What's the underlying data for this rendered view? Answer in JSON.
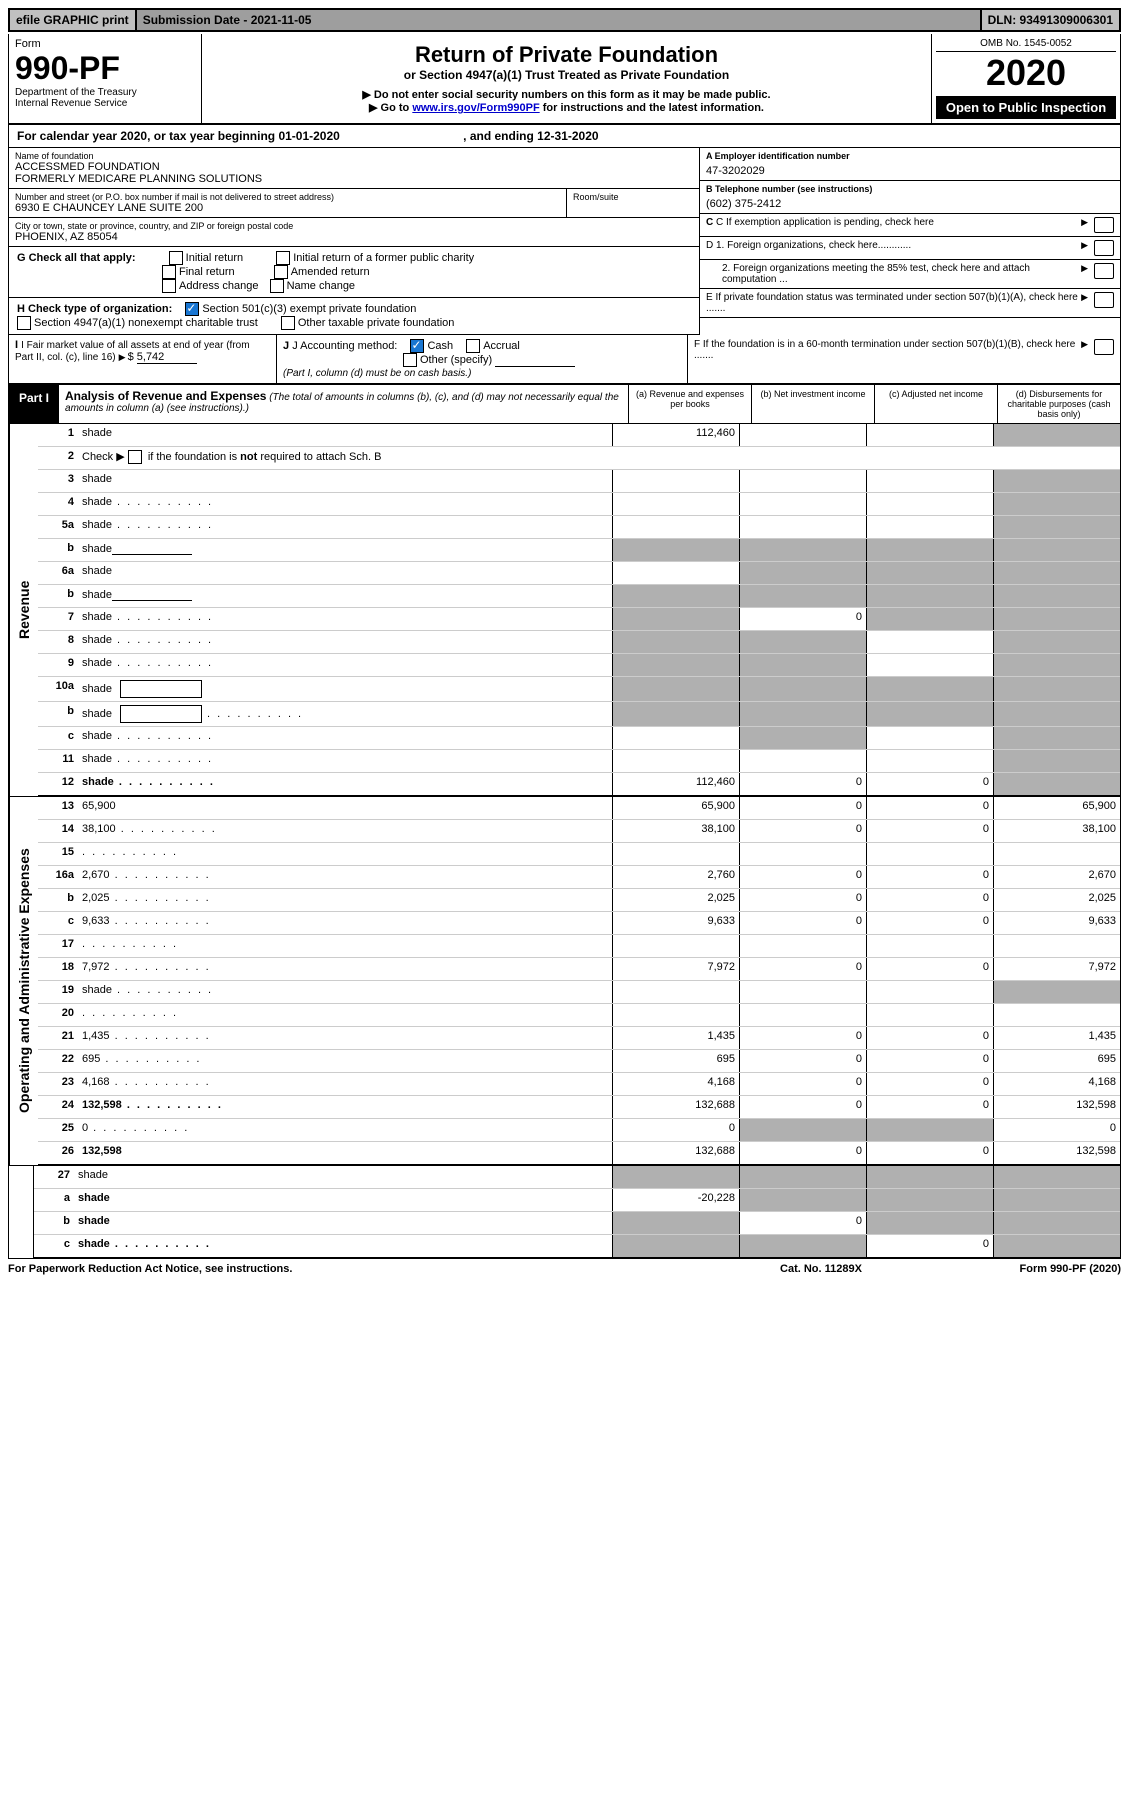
{
  "top": {
    "efile": "efile GRAPHIC print",
    "submission": "Submission Date - 2021-11-05",
    "dln": "DLN: 93491309006301"
  },
  "header": {
    "form_label": "Form",
    "form_no": "990-PF",
    "dept": "Department of the Treasury",
    "irs": "Internal Revenue Service",
    "title": "Return of Private Foundation",
    "subtitle": "or Section 4947(a)(1) Trust Treated as Private Foundation",
    "instr1": "▶ Do not enter social security numbers on this form as it may be made public.",
    "instr2_pre": "▶ Go to ",
    "instr2_link": "www.irs.gov/Form990PF",
    "instr2_post": " for instructions and the latest information.",
    "omb": "OMB No. 1545-0052",
    "year": "2020",
    "open": "Open to Public Inspection"
  },
  "calyear": {
    "text": "For calendar year 2020, or tax year beginning 01-01-2020",
    "ending": ", and ending 12-31-2020"
  },
  "info": {
    "name_label": "Name of foundation",
    "name1": "ACCESSMED FOUNDATION",
    "name2": "FORMERLY MEDICARE PLANNING SOLUTIONS",
    "addr_label": "Number and street (or P.O. box number if mail is not delivered to street address)",
    "addr": "6930 E CHAUNCEY LANE SUITE 200",
    "room_label": "Room/suite",
    "city_label": "City or town, state or province, country, and ZIP or foreign postal code",
    "city": "PHOENIX, AZ  85054",
    "a_label": "A Employer identification number",
    "a_val": "47-3202029",
    "b_label": "B Telephone number (see instructions)",
    "b_val": "(602) 375-2412",
    "c_label": "C If exemption application is pending, check here",
    "d1": "D 1. Foreign organizations, check here............",
    "d2": "2. Foreign organizations meeting the 85% test, check here and attach computation ...",
    "e_label": "E  If private foundation status was terminated under section 507(b)(1)(A), check here .......",
    "f_label": "F  If the foundation is in a 60-month termination under section 507(b)(1)(B), check here ......."
  },
  "g": {
    "label": "G Check all that apply:",
    "opts": [
      "Initial return",
      "Final return",
      "Address change",
      "Initial return of a former public charity",
      "Amended return",
      "Name change"
    ]
  },
  "h": {
    "label": "H Check type of organization:",
    "opt1": "Section 501(c)(3) exempt private foundation",
    "opt2": "Section 4947(a)(1) nonexempt charitable trust",
    "opt3": "Other taxable private foundation"
  },
  "i": {
    "label": "I Fair market value of all assets at end of year (from Part II, col. (c), line 16)",
    "val": "5,742"
  },
  "j": {
    "label": "J Accounting method:",
    "cash": "Cash",
    "accrual": "Accrual",
    "other": "Other (specify)",
    "note": "(Part I, column (d) must be on cash basis.)"
  },
  "part1": {
    "label": "Part I",
    "title": "Analysis of Revenue and Expenses",
    "note": "(The total of amounts in columns (b), (c), and (d) may not necessarily equal the amounts in column (a) (see instructions).)",
    "col_a": "(a)   Revenue and expenses per books",
    "col_b": "(b)   Net investment income",
    "col_c": "(c)   Adjusted net income",
    "col_d": "(d)   Disbursements for charitable purposes (cash basis only)"
  },
  "revenue_label": "Revenue",
  "expenses_label": "Operating and Administrative Expenses",
  "rows": [
    {
      "n": "1",
      "d": "shade",
      "a": "112,460",
      "b": "",
      "c": ""
    },
    {
      "n": "2",
      "d": "Check ▶ ☐ if the foundation is not required to attach Sch. B",
      "nocols": true
    },
    {
      "n": "3",
      "d": "shade",
      "a": "",
      "b": "",
      "c": ""
    },
    {
      "n": "4",
      "d": "shade",
      "a": "",
      "b": "",
      "c": "",
      "dots": true
    },
    {
      "n": "5a",
      "d": "shade",
      "a": "",
      "b": "",
      "c": "",
      "dots": true
    },
    {
      "n": "b",
      "d": "shade",
      "a": "shade",
      "b": "shade",
      "c": "shade",
      "inline": true
    },
    {
      "n": "6a",
      "d": "shade",
      "a": "",
      "b": "shade",
      "c": "shade"
    },
    {
      "n": "b",
      "d": "shade",
      "a": "shade",
      "b": "shade",
      "c": "shade",
      "inline": true
    },
    {
      "n": "7",
      "d": "shade",
      "a": "shade",
      "b": "0",
      "c": "shade",
      "dots": true
    },
    {
      "n": "8",
      "d": "shade",
      "a": "shade",
      "b": "shade",
      "c": "",
      "dots": true
    },
    {
      "n": "9",
      "d": "shade",
      "a": "shade",
      "b": "shade",
      "c": "",
      "dots": true
    },
    {
      "n": "10a",
      "d": "shade",
      "a": "shade",
      "b": "shade",
      "c": "shade",
      "box": true
    },
    {
      "n": "b",
      "d": "shade",
      "a": "shade",
      "b": "shade",
      "c": "shade",
      "box": true,
      "dots": true
    },
    {
      "n": "c",
      "d": "shade",
      "a": "",
      "b": "shade",
      "c": "",
      "dots": true
    },
    {
      "n": "11",
      "d": "shade",
      "a": "",
      "b": "",
      "c": "",
      "dots": true
    },
    {
      "n": "12",
      "d": "shade",
      "a": "112,460",
      "b": "0",
      "c": "0",
      "bold": true,
      "dots": true,
      "bb": true
    }
  ],
  "exp_rows": [
    {
      "n": "13",
      "d": "65,900",
      "a": "65,900",
      "b": "0",
      "c": "0"
    },
    {
      "n": "14",
      "d": "38,100",
      "a": "38,100",
      "b": "0",
      "c": "0",
      "dots": true
    },
    {
      "n": "15",
      "d": "",
      "a": "",
      "b": "",
      "c": "",
      "dots": true
    },
    {
      "n": "16a",
      "d": "2,670",
      "a": "2,760",
      "b": "0",
      "c": "0",
      "dots": true
    },
    {
      "n": "b",
      "d": "2,025",
      "a": "2,025",
      "b": "0",
      "c": "0",
      "dots": true
    },
    {
      "n": "c",
      "d": "9,633",
      "a": "9,633",
      "b": "0",
      "c": "0",
      "dots": true
    },
    {
      "n": "17",
      "d": "",
      "a": "",
      "b": "",
      "c": "",
      "dots": true
    },
    {
      "n": "18",
      "d": "7,972",
      "a": "7,972",
      "b": "0",
      "c": "0",
      "dots": true
    },
    {
      "n": "19",
      "d": "shade",
      "a": "",
      "b": "",
      "c": "",
      "dots": true
    },
    {
      "n": "20",
      "d": "",
      "a": "",
      "b": "",
      "c": "",
      "dots": true
    },
    {
      "n": "21",
      "d": "1,435",
      "a": "1,435",
      "b": "0",
      "c": "0",
      "dots": true
    },
    {
      "n": "22",
      "d": "695",
      "a": "695",
      "b": "0",
      "c": "0",
      "dots": true
    },
    {
      "n": "23",
      "d": "4,168",
      "a": "4,168",
      "b": "0",
      "c": "0",
      "dots": true
    },
    {
      "n": "24",
      "d": "132,598",
      "a": "132,688",
      "b": "0",
      "c": "0",
      "bold": true,
      "dots": true
    },
    {
      "n": "25",
      "d": "0",
      "a": "0",
      "b": "shade",
      "c": "shade",
      "dots": true
    },
    {
      "n": "26",
      "d": "132,598",
      "a": "132,688",
      "b": "0",
      "c": "0",
      "bold": true,
      "bb": true
    }
  ],
  "bottom_rows": [
    {
      "n": "27",
      "d": "shade",
      "a": "shade",
      "b": "shade",
      "c": "shade"
    },
    {
      "n": "a",
      "d": "shade",
      "a": "-20,228",
      "b": "shade",
      "c": "shade",
      "bold": true
    },
    {
      "n": "b",
      "d": "shade",
      "a": "shade",
      "b": "0",
      "c": "shade",
      "bold": true
    },
    {
      "n": "c",
      "d": "shade",
      "a": "shade",
      "b": "shade",
      "c": "0",
      "bold": true,
      "dots": true,
      "bb": true
    }
  ],
  "footer": {
    "left": "For Paperwork Reduction Act Notice, see instructions.",
    "center": "Cat. No. 11289X",
    "right": "Form 990-PF (2020)"
  }
}
